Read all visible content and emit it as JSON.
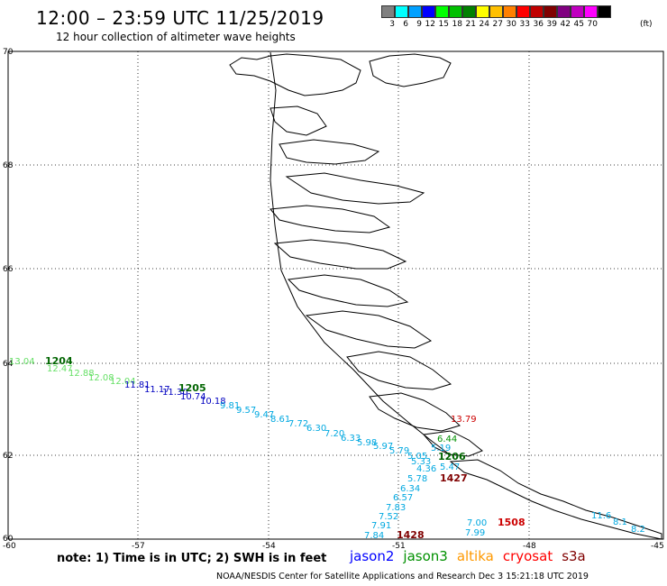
{
  "header": {
    "title": "12:00 – 23:59 UTC 11/25/2019",
    "subtitle": "12 hour collection of altimeter wave heights"
  },
  "colorbar": {
    "colors": [
      "#808080",
      "#00ffff",
      "#00a0ff",
      "#0000ff",
      "#00ff00",
      "#00c000",
      "#008000",
      "#ffff00",
      "#ffc000",
      "#ff8000",
      "#ff0000",
      "#c00000",
      "#800000",
      "#800080",
      "#c000c0",
      "#ff00ff",
      "#000000"
    ],
    "labels": [
      "3",
      "6",
      "9",
      "12",
      "15",
      "18",
      "21",
      "24",
      "27",
      "30",
      "33",
      "36",
      "39",
      "42",
      "45",
      "70"
    ],
    "unit": "(ft)"
  },
  "axes": {
    "lat_labels": [
      "70",
      "68",
      "66",
      "64",
      "62",
      "60"
    ],
    "lon_labels": [
      "-60",
      "-57",
      "-54",
      "-51",
      "-48",
      "-45"
    ]
  },
  "tracks": {
    "track_1204_green": {
      "color": "#66e066",
      "values": [
        "13.04",
        "12.47",
        "12.88",
        "12.08",
        "12.04"
      ],
      "time": "1204",
      "time_color": "#006400"
    },
    "track_1205_blue": {
      "color": "#0000c0",
      "values": [
        "11.81",
        "11.17",
        "11.30",
        "10.74",
        "10.18"
      ],
      "time": "1205",
      "time_color": "#006400"
    },
    "track_1205_cyan": {
      "color": "#00a8e0",
      "values": [
        "9.81",
        "9.57",
        "9.47",
        "8.61",
        "7.72",
        "6.30",
        "7.20",
        "6.33",
        "5.98",
        "5.97",
        "5.79",
        "5.05",
        "5.19",
        "4.36",
        "5.47",
        "5.33"
      ],
      "time": "1206",
      "time_color": "#006400"
    },
    "track_1427": {
      "color": "#00a8e0",
      "values": [
        "5.78",
        "6.34",
        "6.57",
        "7.83",
        "7.52",
        "7.91",
        "7.84"
      ],
      "time_1427": "1427",
      "time_1428": "1428",
      "time_color": "#800000"
    },
    "track_1508": {
      "color": "#00a8e0",
      "values": [
        "7.00",
        "7.99",
        "11.6",
        "8.1",
        "8.2"
      ],
      "time": "1508",
      "time_color": "#cc0000"
    },
    "misc_values": {
      "red_value": "13.79",
      "green_value": "6.44"
    }
  },
  "notes": {
    "note_text": "note:  1) Time is in UTC; 2) SWH is in feet",
    "satellites": [
      {
        "name": "jason2",
        "color": "#0000ff"
      },
      {
        "name": "jason3",
        "color": "#009000"
      },
      {
        "name": "altika",
        "color": "#ff9900"
      },
      {
        "name": "cryosat",
        "color": "#ff0000"
      },
      {
        "name": "s3a",
        "color": "#800000"
      }
    ],
    "footer": "NOAA/NESDIS Center for Satellite Applications and Research    Dec  3 15:21:18 UTC 2019"
  }
}
